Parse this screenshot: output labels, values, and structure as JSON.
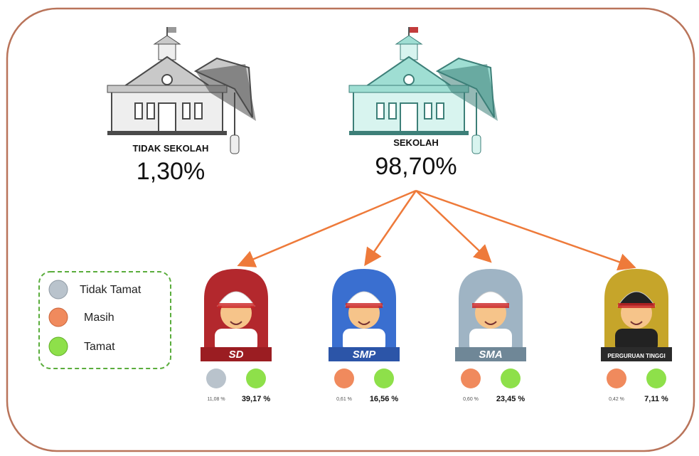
{
  "not_school": {
    "label": "TIDAK SEKOLAH",
    "percent": "1,30%"
  },
  "school": {
    "label": "SEKOLAH",
    "percent": "98,70%"
  },
  "legend": [
    "Tidak Tamat",
    "Masih",
    "Tamat"
  ],
  "levels": [
    {
      "label": "SD",
      "first": "11,08 %",
      "tamat": "39,17 %"
    },
    {
      "label": "SMP",
      "first": "0,61 %",
      "tamat": "16,56 %"
    },
    {
      "label": "SMA",
      "first": "0,60 %",
      "tamat": "23,45 %"
    },
    {
      "label": "PERGURUAN TINGGI",
      "first": "0,42 %",
      "tamat": "7,11 %"
    }
  ]
}
